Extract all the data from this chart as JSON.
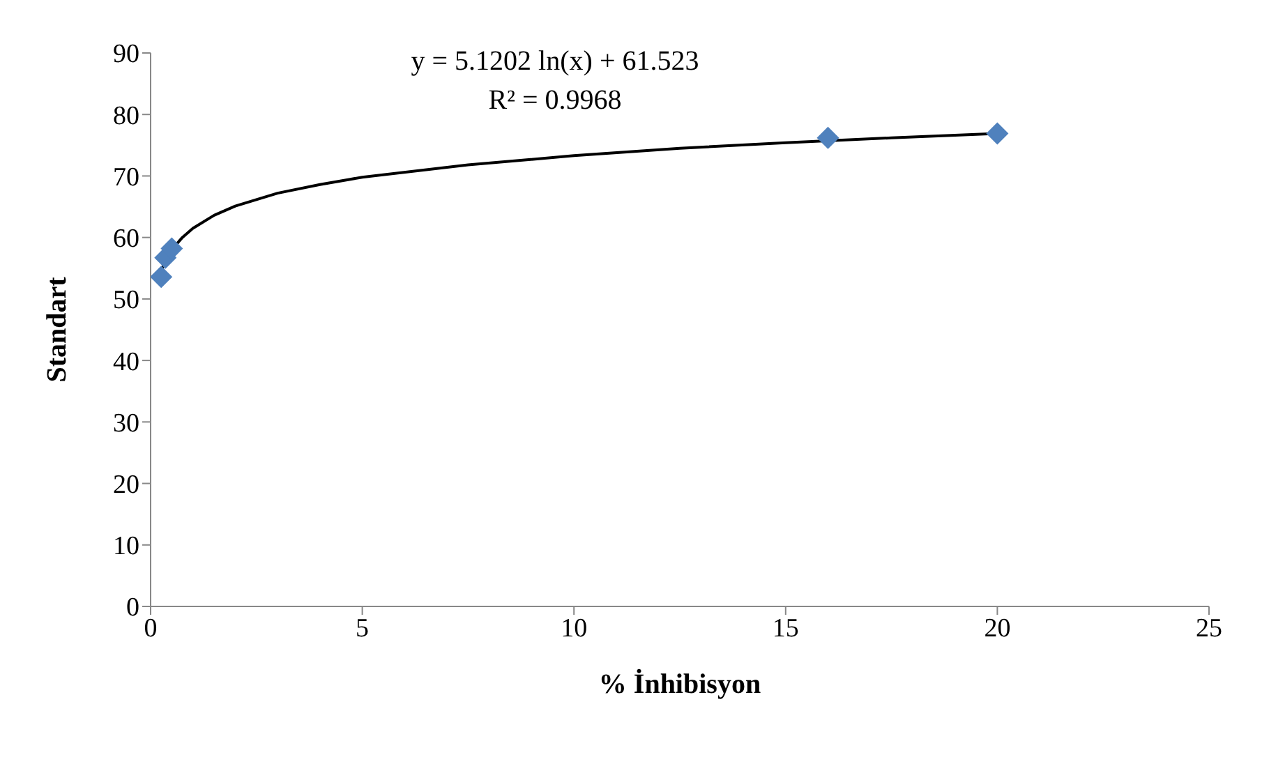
{
  "chart_data": {
    "type": "scatter",
    "xlabel": "% İnhibisyon",
    "ylabel": "Standart",
    "xlim": [
      0,
      25
    ],
    "xticks": [
      0,
      5,
      10,
      15,
      20,
      25
    ],
    "ylim": [
      0,
      90
    ],
    "yticks": [
      0,
      10,
      20,
      30,
      40,
      50,
      60,
      70,
      80,
      90
    ],
    "grid": false,
    "legend": false,
    "marker": "diamond",
    "annotations": [
      "y = 5.1202 ln(x) + 61.523",
      "R² = 0.9968"
    ],
    "series": [
      {
        "color": "#4f81bd",
        "x": [
          0.25,
          0.35,
          0.5,
          16,
          20
        ],
        "values": [
          53.6,
          56.7,
          58.2,
          76.2,
          76.9
        ]
      },
      {
        "type": "line",
        "color": "#000000",
        "marker": "none",
        "x": [
          0.25,
          0.3,
          0.4,
          0.5,
          0.75,
          1,
          1.5,
          2,
          3,
          4,
          5,
          7.5,
          10,
          12.5,
          15,
          17.5,
          20
        ],
        "values": [
          54.4,
          55.4,
          56.8,
          58,
          60,
          61.5,
          63.6,
          65.1,
          67.2,
          68.6,
          69.8,
          71.8,
          73.3,
          74.5,
          75.4,
          76.2,
          76.9
        ]
      }
    ]
  }
}
